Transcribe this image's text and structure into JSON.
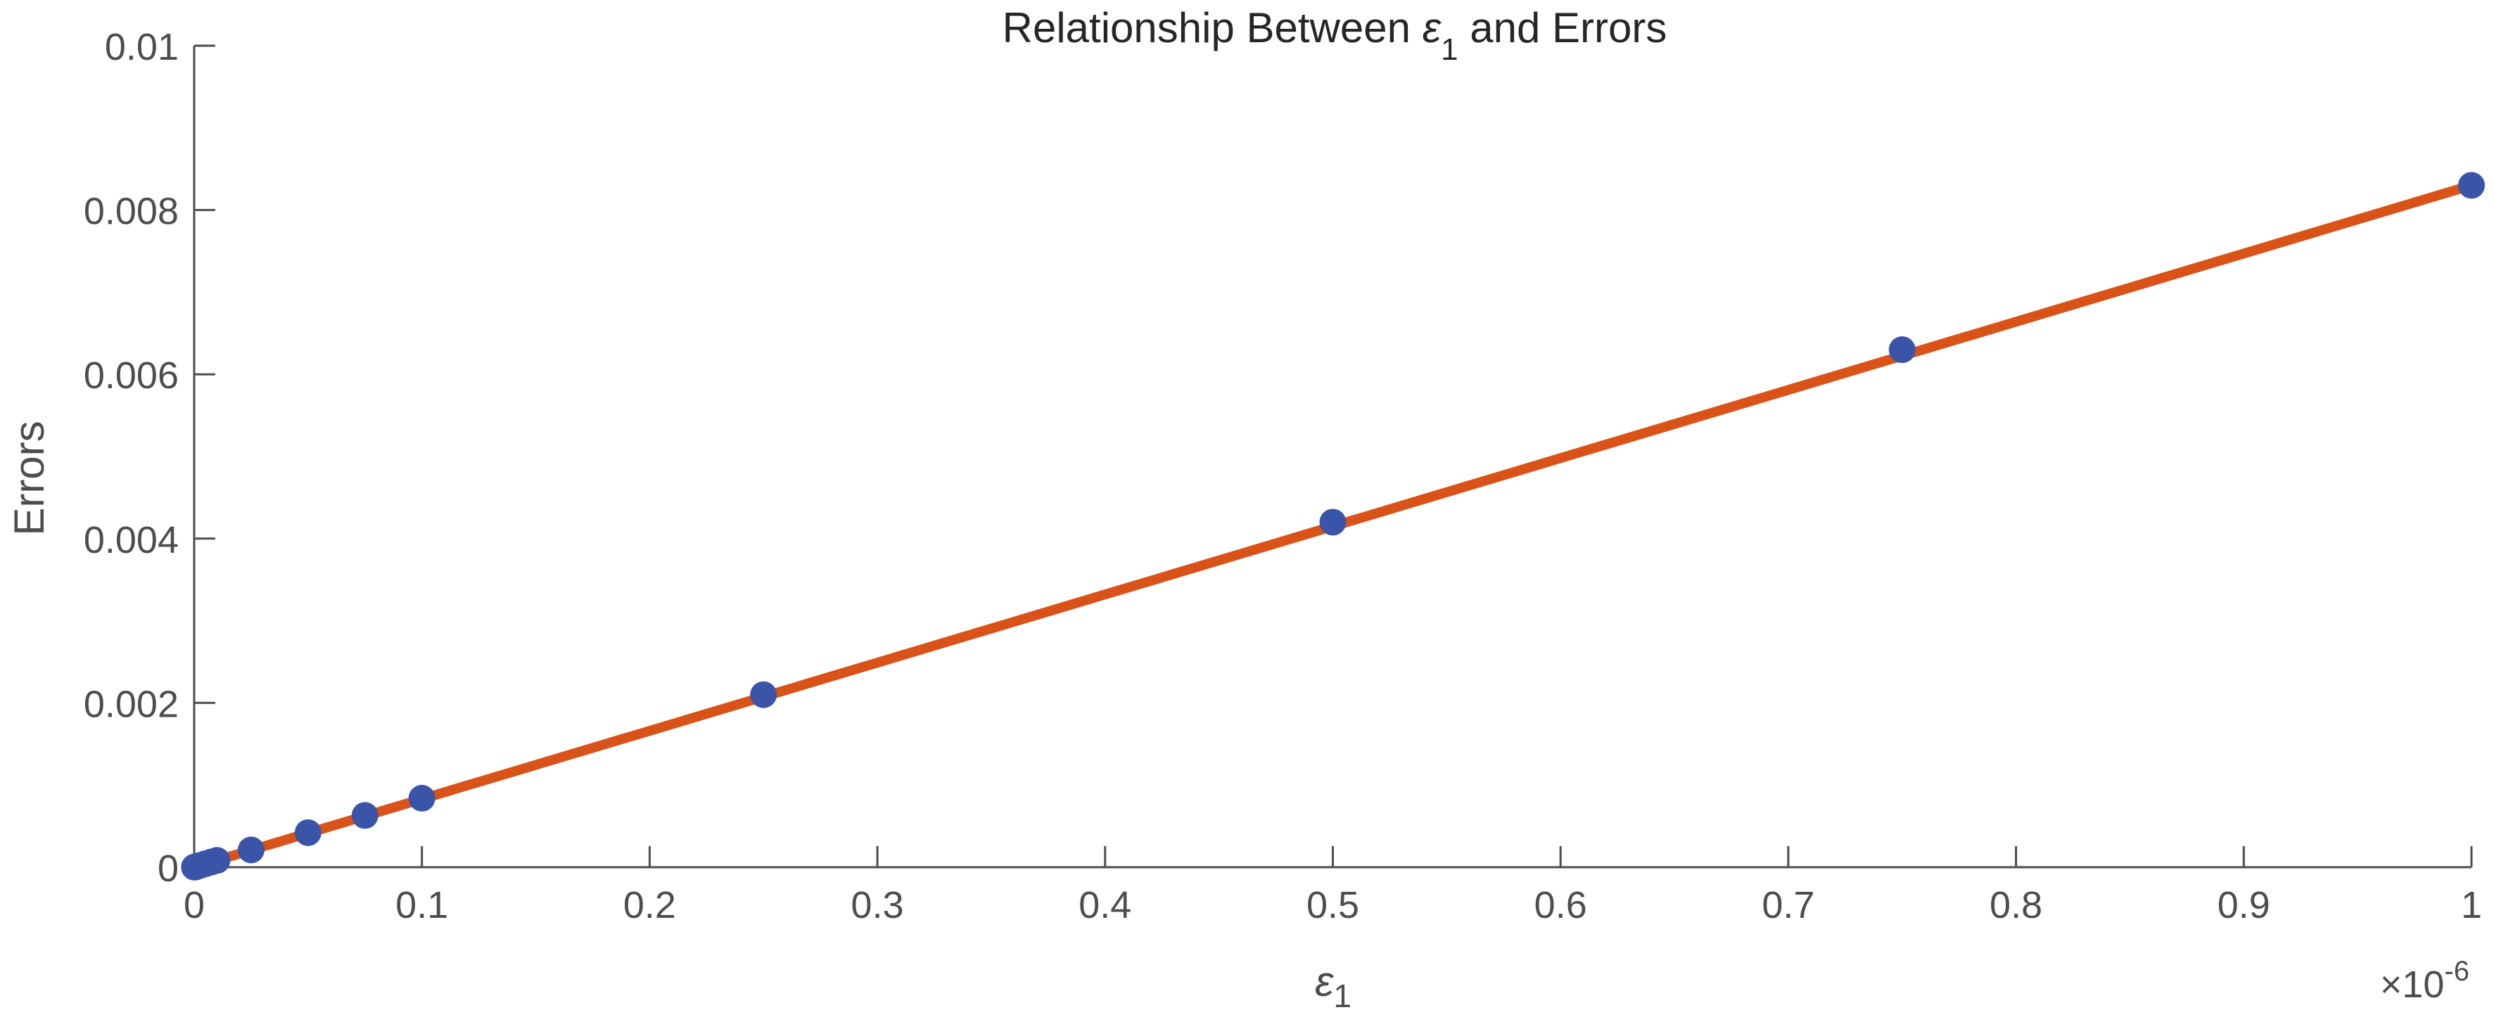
{
  "chart_data": {
    "type": "line",
    "title": "Relationship Between ε1 and Errors",
    "title_parts": {
      "before": "Relationship Between ",
      "symbol": "ε",
      "sub": "1",
      "after": " and Errors"
    },
    "xlabel": {
      "symbol": "ε",
      "sub": "1"
    },
    "ylabel": "Errors",
    "x_exponent": {
      "base": "×10",
      "power": "-6"
    },
    "xlim": [
      0,
      1
    ],
    "ylim": [
      0,
      0.01
    ],
    "x_ticks": [
      "0",
      "0.1",
      "0.2",
      "0.3",
      "0.4",
      "0.5",
      "0.6",
      "0.7",
      "0.8",
      "0.9",
      "1"
    ],
    "y_ticks": [
      "0",
      "0.002",
      "0.004",
      "0.006",
      "0.008",
      "0.01"
    ],
    "grid": false,
    "series": [
      {
        "kind": "line",
        "color": "#D95319",
        "x": [
          0,
          1
        ],
        "y": [
          0,
          0.0083
        ]
      },
      {
        "kind": "markers",
        "color": "#3A55A8",
        "x": [
          0.0001,
          0.00025,
          0.0005,
          0.00075,
          0.001,
          0.0025,
          0.005,
          0.0075,
          0.01,
          0.025,
          0.05,
          0.075,
          0.1,
          0.25,
          0.5,
          0.75,
          1
        ],
        "y": [
          8e-07,
          2e-06,
          4.2e-06,
          6.3e-06,
          8.3e-06,
          2.1e-05,
          4.2e-05,
          6.3e-05,
          8.3e-05,
          0.00021,
          0.00042,
          0.00063,
          0.00084,
          0.0021,
          0.0042,
          0.0063,
          0.0083
        ]
      }
    ]
  }
}
